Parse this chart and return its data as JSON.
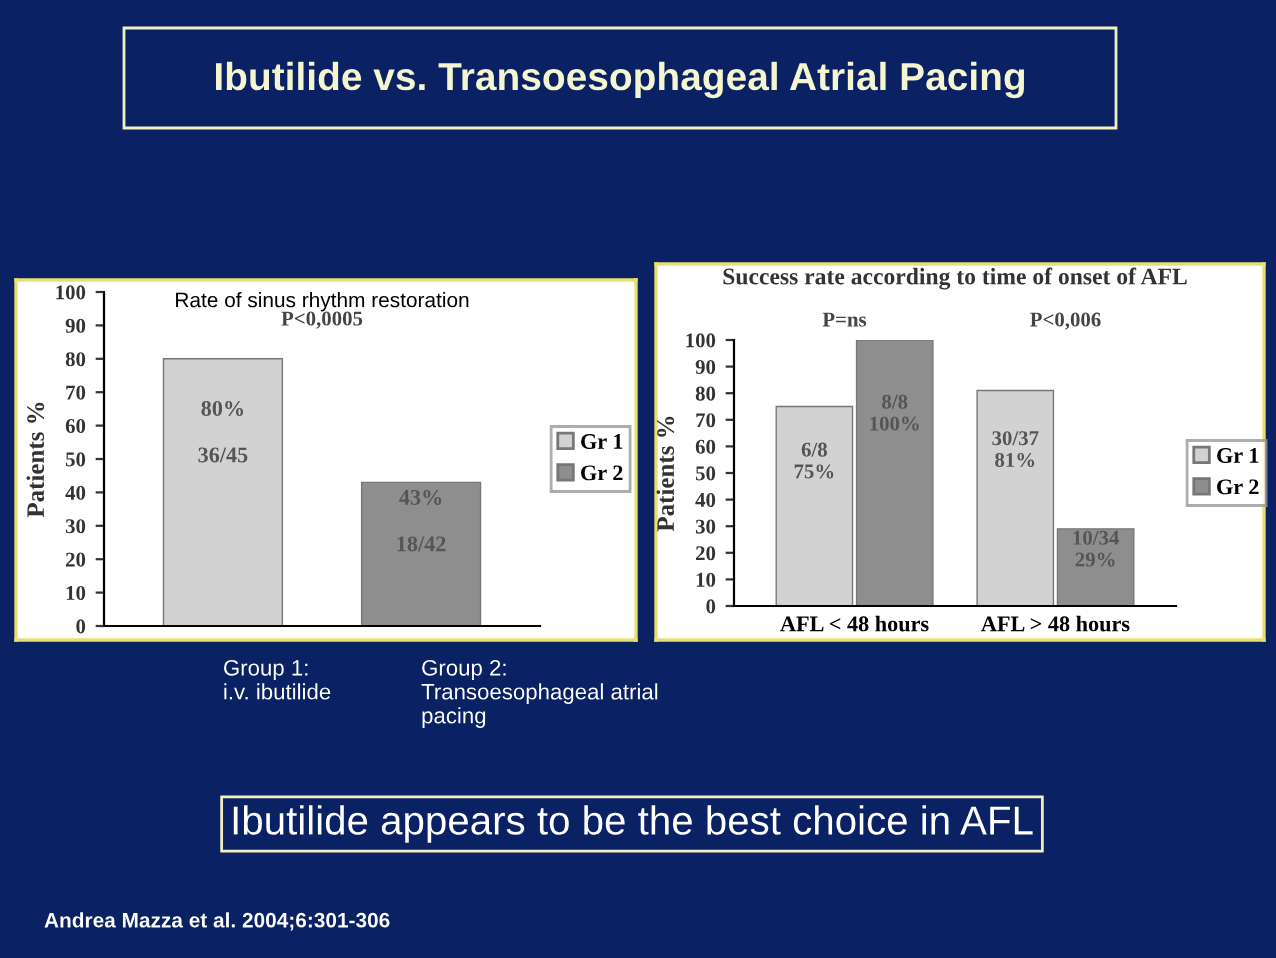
{
  "chart_data": [
    {
      "type": "bar",
      "title": "Rate of sinus rhythm restoration",
      "ylabel": "Patients %",
      "categories": [
        "Group 1:\ni.v. ibutilide",
        "Group 2:\nTransoesophageal atrial\npacing"
      ],
      "series": [
        {
          "name": "Gr 1",
          "color": "#d2d2d2",
          "values": [
            80,
            null
          ],
          "value_labels": [
            "80%\n\n36/45",
            null
          ]
        },
        {
          "name": "Gr 2",
          "color": "#8e8e8e",
          "values": [
            null,
            43
          ],
          "value_labels": [
            null,
            "43%\n\n18/42"
          ]
        }
      ],
      "ylim": [
        0,
        100
      ],
      "yticks": [
        0,
        10,
        20,
        30,
        40,
        50,
        60,
        70,
        80,
        90,
        100
      ],
      "legend": "right",
      "annotations": [
        "P<0,0005"
      ]
    },
    {
      "type": "bar",
      "title": "Success rate according to time of onset of AFL",
      "ylabel": "Patients %",
      "categories": [
        "AFL < 48 hours",
        "AFL > 48 hours"
      ],
      "series": [
        {
          "name": "Gr 1",
          "color": "#d2d2d2",
          "values": [
            75,
            81
          ],
          "value_labels": [
            "6/8\n75%",
            "30/37\n81%"
          ]
        },
        {
          "name": "Gr 2",
          "color": "#8e8e8e",
          "values": [
            100,
            29
          ],
          "value_labels": [
            "8/8\n100%",
            "10/34\n29%"
          ]
        }
      ],
      "ylim": [
        0,
        100
      ],
      "yticks": [
        0,
        10,
        20,
        30,
        40,
        50,
        60,
        70,
        80,
        90,
        100
      ],
      "legend": "right",
      "annotations": [
        "P=ns",
        "P<0,006"
      ]
    },
    {
      "type": "other",
      "title": "Ibutilide vs. Transoesophageal Atrial Pacing",
      "annotations": [
        "Ibutilide appears to be the best choice in AFL",
        "Andrea Mazza et al. 2004;6:301-306"
      ]
    }
  ]
}
